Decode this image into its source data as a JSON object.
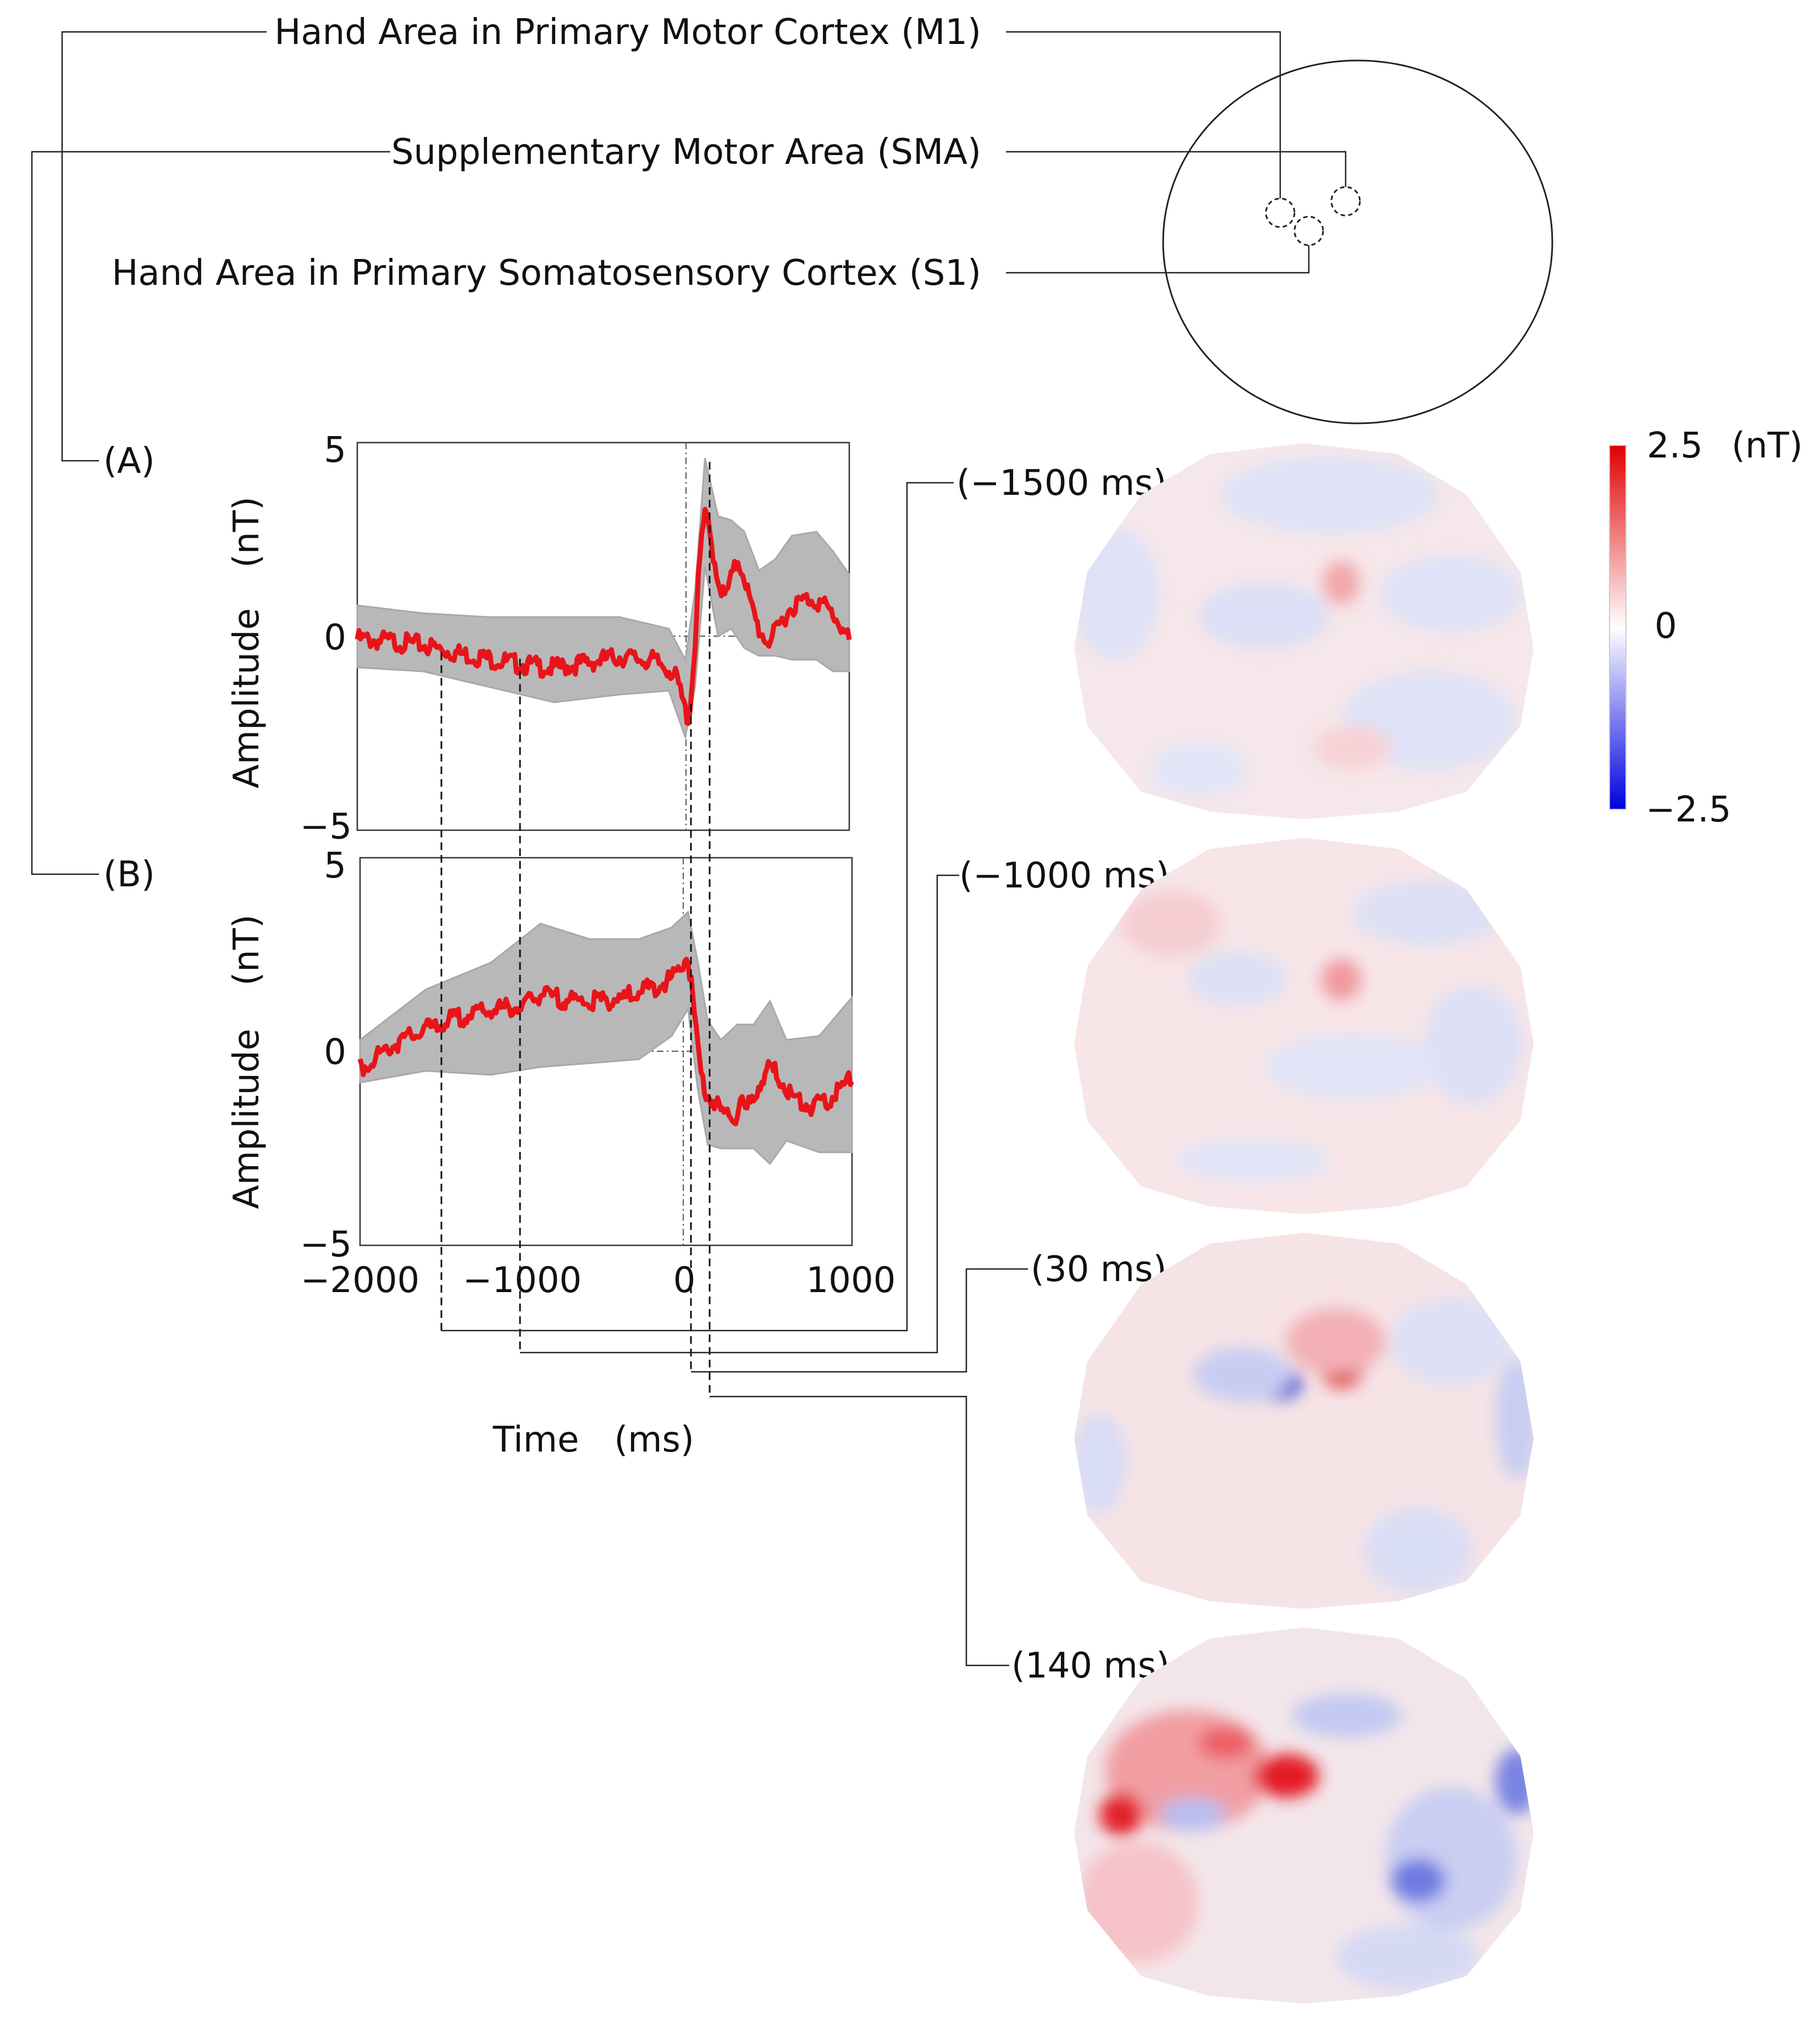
{
  "head_diagram": {
    "regions": [
      {
        "id": "m1",
        "label": "Hand Area in Primary Motor Cortex (M1)"
      },
      {
        "id": "sma",
        "label": "Supplementary Motor Area (SMA)"
      },
      {
        "id": "s1",
        "label": "Hand Area in Primary Somatosensory Cortex (S1)"
      }
    ]
  },
  "chart_data": [
    {
      "type": "line",
      "panel_label": "(A)",
      "region": "Hand Area in Primary Motor Cortex (M1)",
      "xlabel": "Time (ms)",
      "ylabel": "Amplitude (nT)",
      "ylabel_parts": [
        "Amplitude",
        "(nT)"
      ],
      "xlim": [
        -2000,
        1000
      ],
      "ylim": [
        -5,
        5
      ],
      "yticks": [
        {
          "value": 5,
          "label": "5"
        },
        {
          "value": 0,
          "label": "0"
        },
        {
          "value": -5,
          "label": "−5"
        }
      ],
      "series": [
        {
          "name": "mean",
          "color": "#e8141a",
          "x": [
            -2000,
            -1800,
            -1600,
            -1500,
            -1400,
            -1200,
            -1000,
            -800,
            -600,
            -400,
            -200,
            -100,
            -50,
            0,
            20,
            40,
            60,
            80,
            100,
            120,
            140,
            160,
            200,
            240,
            280,
            320,
            360,
            400,
            450,
            500,
            550,
            600,
            650,
            700,
            750,
            800,
            850,
            900,
            950,
            1000
          ],
          "y": [
            0.05,
            0.0,
            -0.1,
            -0.2,
            -0.3,
            -0.45,
            -0.6,
            -0.7,
            -0.55,
            -0.4,
            -0.5,
            -0.7,
            -1.0,
            -1.8,
            -2.0,
            -1.2,
            0.0,
            1.5,
            2.7,
            3.2,
            3.0,
            2.5,
            1.6,
            1.1,
            1.6,
            2.1,
            1.7,
            0.9,
            0.3,
            0.0,
            0.2,
            0.6,
            0.9,
            1.0,
            1.1,
            1.05,
            0.9,
            0.7,
            0.4,
            0.0
          ]
        },
        {
          "name": "individual trials (range)",
          "color": "#b8b8b8",
          "x": [
            -2000,
            -1600,
            -1200,
            -800,
            -400,
            -100,
            0,
            60,
            120,
            200,
            280,
            360,
            450,
            550,
            650,
            800,
            900,
            1000
          ],
          "upper": [
            0.8,
            0.6,
            0.5,
            0.5,
            0.5,
            0.2,
            -0.6,
            1.2,
            4.6,
            3.1,
            3.0,
            2.7,
            1.7,
            2.0,
            2.6,
            2.7,
            2.2,
            1.6
          ],
          "lower": [
            -0.8,
            -0.9,
            -1.3,
            -1.7,
            -1.5,
            -1.4,
            -2.6,
            -1.3,
            1.8,
            0.0,
            0.2,
            -0.3,
            -0.5,
            -0.5,
            -0.6,
            -0.6,
            -0.9,
            -0.9
          ]
        }
      ]
    },
    {
      "type": "line",
      "panel_label": "(B)",
      "region": "Supplementary Motor Area (SMA)",
      "xlabel": "Time (ms)",
      "ylabel": "Amplitude (nT)",
      "ylabel_parts": [
        "Amplitude",
        "(nT)"
      ],
      "xlim": [
        -2000,
        1000
      ],
      "ylim": [
        -5,
        5
      ],
      "yticks": [
        {
          "value": 5,
          "label": "5"
        },
        {
          "value": 0,
          "label": "0"
        },
        {
          "value": -5,
          "label": "−5"
        }
      ],
      "xticks": [
        {
          "value": -2000,
          "label": "−2000"
        },
        {
          "value": -1000,
          "label": "−1000"
        },
        {
          "value": 0,
          "label": "0"
        },
        {
          "value": 1000,
          "label": "1000"
        }
      ],
      "series": [
        {
          "name": "mean",
          "color": "#e8141a",
          "x": [
            -2000,
            -1800,
            -1600,
            -1400,
            -1200,
            -1000,
            -900,
            -800,
            -600,
            -400,
            -200,
            -100,
            -50,
            0,
            40,
            80,
            120,
            160,
            200,
            240,
            280,
            320,
            360,
            400,
            450,
            500,
            550,
            600,
            650,
            700,
            750,
            800,
            850,
            900,
            950,
            1000
          ],
          "y": [
            -0.3,
            0.3,
            0.7,
            1.0,
            1.2,
            1.3,
            1.6,
            1.5,
            1.4,
            1.5,
            1.8,
            2.0,
            2.3,
            2.6,
            1.0,
            -0.5,
            -1.0,
            -1.2,
            -1.4,
            -1.5,
            -1.6,
            -1.2,
            -1.4,
            -1.0,
            -0.6,
            -0.3,
            -0.5,
            -0.8,
            -1.1,
            -1.2,
            -1.3,
            -1.2,
            -1.1,
            -1.0,
            -0.8,
            -0.5
          ]
        },
        {
          "name": "individual trials (range)",
          "color": "#b8b8b8",
          "x": [
            -2000,
            -1600,
            -1200,
            -900,
            -600,
            -300,
            -100,
            0,
            60,
            120,
            200,
            300,
            400,
            500,
            600,
            800,
            1000
          ],
          "upper": [
            0.3,
            1.6,
            2.3,
            3.3,
            2.9,
            2.9,
            3.2,
            3.6,
            2.3,
            0.8,
            0.3,
            0.7,
            0.7,
            1.3,
            0.3,
            0.4,
            1.4
          ],
          "lower": [
            -0.8,
            -0.5,
            -0.6,
            -0.4,
            -0.3,
            -0.2,
            0.4,
            1.1,
            -1.0,
            -2.4,
            -2.5,
            -2.5,
            -2.5,
            -2.9,
            -2.3,
            -2.6,
            -2.6
          ]
        }
      ]
    }
  ],
  "shared_xlabel_parts": [
    "Time",
    "(ms)"
  ],
  "time_markers": [
    {
      "time_ms": -1500,
      "label": "(−1500 ms)"
    },
    {
      "time_ms": -1000,
      "label": "(−1000 ms)"
    },
    {
      "time_ms": 30,
      "label": "(30 ms)"
    },
    {
      "time_ms": 140,
      "label": "(140 ms)"
    }
  ],
  "topo_maps": [
    {
      "time_label": "(−1500 ms)",
      "time_ms": -1500
    },
    {
      "time_label": "(−1000 ms)",
      "time_ms": -1000
    },
    {
      "time_label": "(30 ms)",
      "time_ms": 30
    },
    {
      "time_label": "(140 ms)",
      "time_ms": 140
    }
  ],
  "colorbar": {
    "max_label": "2.5",
    "unit": "(nT)",
    "mid_label": "0",
    "min_label": "−2.5",
    "max_value": 2.5,
    "min_value": -2.5,
    "max_color": "#e00000",
    "mid_color": "#ffffff",
    "min_color": "#0000e0"
  }
}
